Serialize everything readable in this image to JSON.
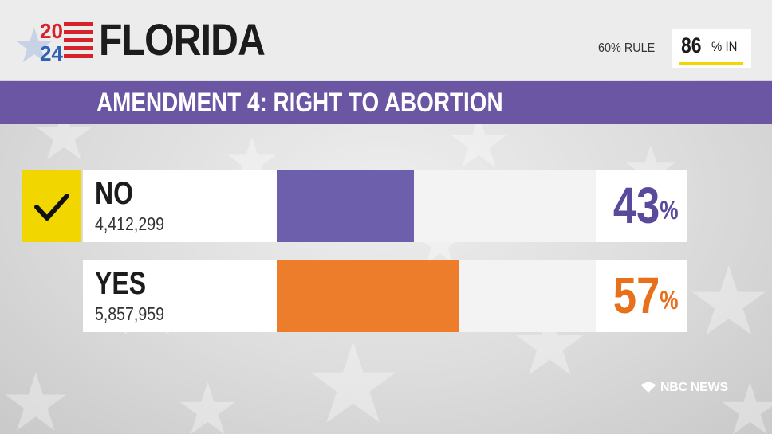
{
  "header": {
    "year_top": "20",
    "year_bottom": "24",
    "state": "FLORIDA",
    "rule": "60% RULE",
    "reporting_value": "86",
    "reporting_unit": "% IN",
    "reporting_fraction": 0.86
  },
  "race": {
    "title": "AMENDMENT 4: RIGHT TO ABORTION"
  },
  "chart_data": {
    "type": "bar",
    "title": "AMENDMENT 4: RIGHT TO ABORTION",
    "categories": [
      "NO",
      "YES"
    ],
    "values": [
      43,
      57
    ],
    "votes": [
      "4,412,299",
      "5,857,959"
    ],
    "value_labels": [
      "43",
      "57"
    ],
    "percent_symbol": "%",
    "called": [
      true,
      false
    ],
    "colors": [
      "#6e5fad",
      "#ed7d2b"
    ],
    "label_colors": [
      "#5b4a9c",
      "#e8701a"
    ],
    "xlim": [
      0,
      100
    ]
  },
  "footer": {
    "network": "NBC NEWS"
  },
  "colors": {
    "header_bg": "#ececec",
    "title_bar": "#6b56a3",
    "check_bg": "#f2d600",
    "logo_red": "#d6222a",
    "logo_blue": "#2f5fb6"
  }
}
